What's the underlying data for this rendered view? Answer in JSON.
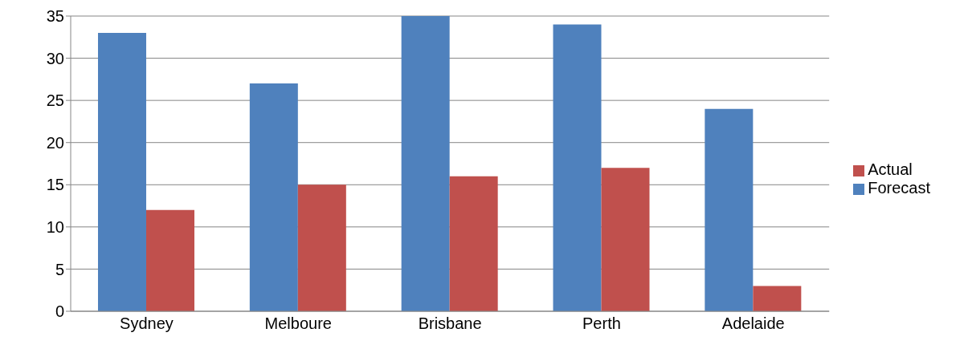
{
  "chart_data": {
    "type": "bar",
    "categories": [
      "Sydney",
      "Melboure",
      "Brisbane",
      "Perth",
      "Adelaide"
    ],
    "series": [
      {
        "name": "Forecast",
        "color": "#4f81bd",
        "values": [
          33,
          27,
          35,
          34,
          24
        ]
      },
      {
        "name": "Actual",
        "color": "#c0504d",
        "values": [
          12,
          15,
          16,
          17,
          3
        ]
      }
    ],
    "ylim": [
      0,
      35
    ],
    "yticks": [
      0,
      5,
      10,
      15,
      20,
      25,
      30,
      35
    ],
    "grid": "y",
    "legend": "right"
  }
}
